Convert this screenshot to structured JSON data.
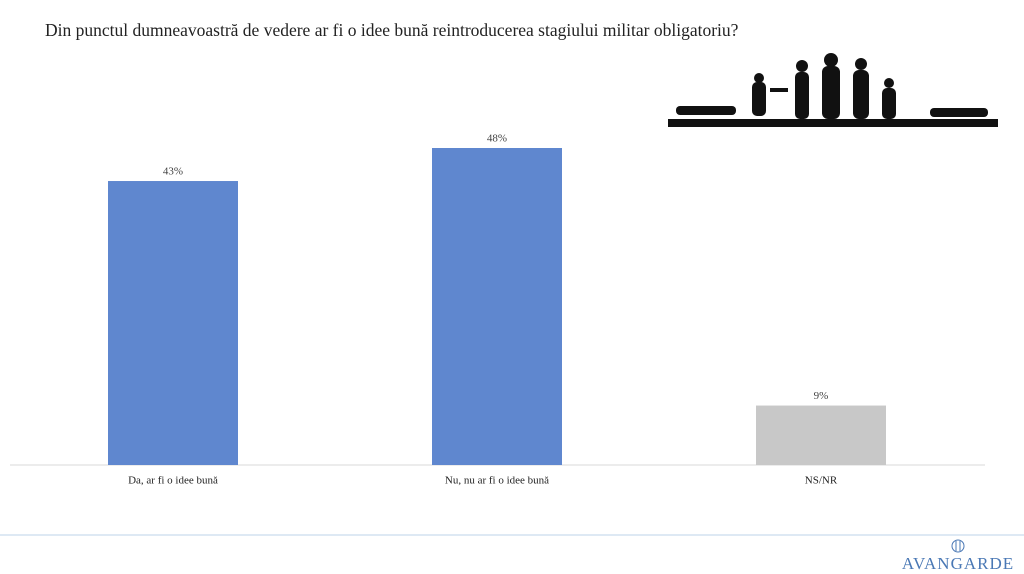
{
  "chart_data": {
    "type": "bar",
    "title": "Din punctul dumneavoastră de vedere ar fi o idee bună reintroducerea stagiului militar obligatoriu?",
    "categories": [
      "Da, ar fi o idee bună",
      "Nu, nu ar fi o idee bună",
      "NS/NR"
    ],
    "values": [
      43,
      48,
      9
    ],
    "value_labels": [
      "43%",
      "48%",
      "9%"
    ],
    "colors": [
      "#5f87cf",
      "#5f87cf",
      "#c8c8c8"
    ]
  },
  "logo": "AVANGARDE"
}
